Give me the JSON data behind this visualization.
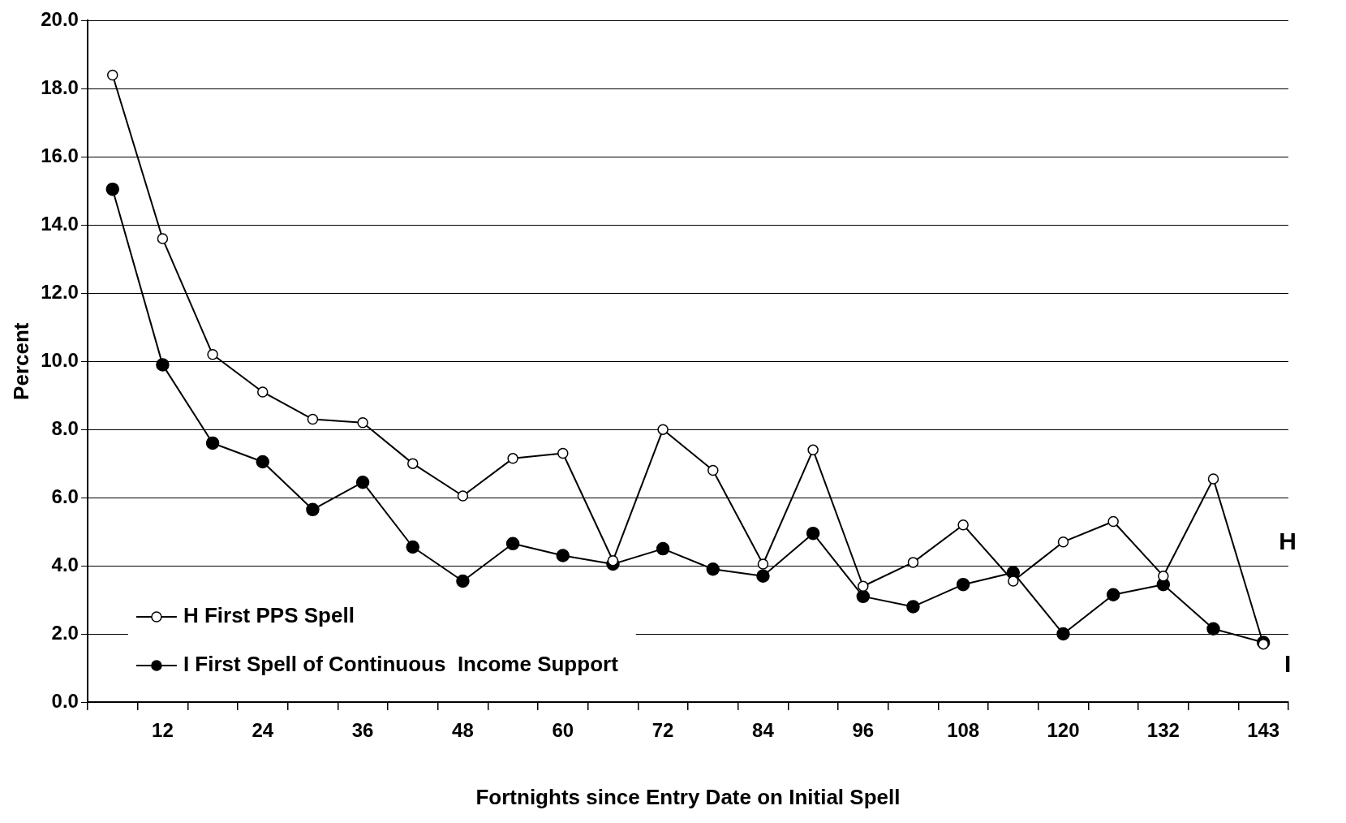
{
  "chart_data": {
    "type": "line",
    "xlabel": "Fortnights since Entry Date on Initial Spell",
    "ylabel": "Percent",
    "categories": [
      null,
      "12",
      null,
      "24",
      null,
      "36",
      null,
      "48",
      null,
      "60",
      null,
      "72",
      null,
      "84",
      null,
      "96",
      null,
      "108",
      null,
      "120",
      null,
      "132",
      null,
      "143"
    ],
    "series": [
      {
        "name": "H First PPS Spell",
        "color": "#000000",
        "marker": "open-circle",
        "values": [
          18.4,
          13.6,
          10.2,
          9.1,
          8.3,
          8.2,
          7.0,
          6.05,
          7.15,
          7.3,
          4.15,
          8.0,
          6.8,
          4.05,
          7.4,
          3.4,
          4.1,
          5.2,
          3.55,
          4.7,
          5.3,
          3.7,
          6.55,
          1.7
        ]
      },
      {
        "name": "I First Spell of Continuous  Income Support",
        "color": "#000000",
        "marker": "circle",
        "values": [
          15.05,
          9.9,
          7.6,
          7.05,
          5.65,
          6.45,
          4.55,
          3.55,
          4.65,
          4.3,
          4.05,
          4.5,
          3.9,
          3.7,
          4.95,
          3.1,
          2.8,
          3.45,
          3.8,
          2.0,
          3.15,
          3.45,
          2.15,
          1.75
        ]
      }
    ],
    "ylim": [
      0,
      20
    ],
    "yticks": [
      {
        "value": 0,
        "label": "0.0"
      },
      {
        "value": 2,
        "label": "2.0"
      },
      {
        "value": 4,
        "label": "4.0"
      },
      {
        "value": 6,
        "label": "6.0"
      },
      {
        "value": 8,
        "label": "8.0"
      },
      {
        "value": 10,
        "label": "10.0"
      },
      {
        "value": 12,
        "label": "12.0"
      },
      {
        "value": 14,
        "label": "14.0"
      },
      {
        "value": 16,
        "label": "16.0"
      },
      {
        "value": 18,
        "label": "18.0"
      },
      {
        "value": 20,
        "label": "20.0"
      }
    ],
    "grid": "y",
    "legend": "bottom left",
    "line_style": "solid",
    "annotations": [
      "H",
      "I"
    ]
  }
}
